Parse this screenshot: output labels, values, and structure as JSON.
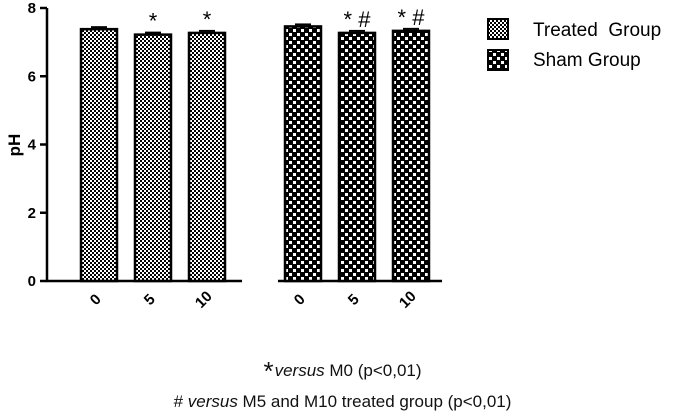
{
  "chart_data": {
    "type": "bar",
    "ylabel": "pH",
    "xlabel": "",
    "ylim": [
      0,
      8
    ],
    "yticks": [
      0,
      2,
      4,
      6,
      8
    ],
    "categories": [
      "0",
      "5",
      "10"
    ],
    "series": [
      {
        "name": "Treated  Group",
        "pattern": "dense-checker",
        "values": [
          7.38,
          7.22,
          7.27
        ],
        "marks": [
          "",
          "*",
          "*"
        ]
      },
      {
        "name": "Sham Group",
        "pattern": "coarse-checker",
        "values": [
          7.46,
          7.27,
          7.33
        ],
        "marks": [
          "",
          "* #",
          "* #"
        ]
      }
    ],
    "legend_position": "top-right",
    "grid": false
  },
  "footnotes": [
    {
      "symbol": "*",
      "italic": "versus",
      "rest": " M0 (p<0,01)"
    },
    {
      "symbol": "# ",
      "italic": "versus",
      "rest": " M5 and M10 treated group (p<0,01)"
    }
  ],
  "colors": {
    "bar_fill": "#ffffff",
    "pattern": "#000000",
    "axis": "#000000"
  }
}
